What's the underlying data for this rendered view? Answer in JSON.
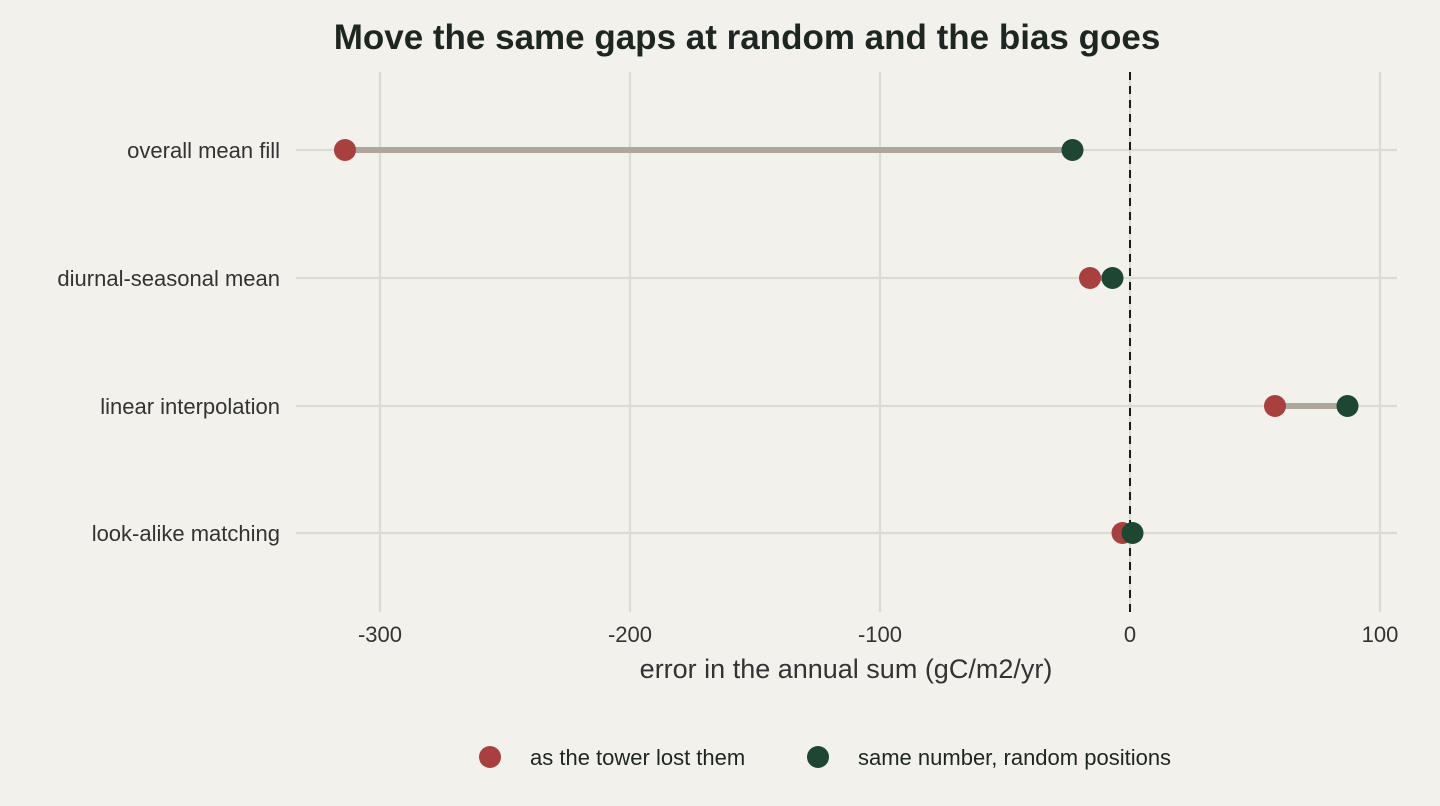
{
  "chart_data": {
    "type": "dot-range",
    "title": "Move the same gaps at random and the bias goes",
    "xlabel": "error in the annual sum (gC/m2/yr)",
    "ylabel": "",
    "xlim": [
      -340,
      107
    ],
    "x_ticks": [
      -300,
      -200,
      -100,
      0,
      100
    ],
    "x_tick_labels": [
      "-300",
      "-200",
      "-100",
      "0",
      "100"
    ],
    "reference_line": {
      "x": 0,
      "style": "dashed"
    },
    "grid": true,
    "legend_position": "bottom",
    "categories": [
      "overall mean fill",
      "diurnal-seasonal mean",
      "linear interpolation",
      "look-alike matching"
    ],
    "series": [
      {
        "name": "as the tower lost them",
        "color": "#a84040",
        "values": [
          -314,
          -16,
          58,
          -3
        ]
      },
      {
        "name": "same number, random positions",
        "color": "#1e4632",
        "values": [
          -23,
          -7,
          87,
          1
        ]
      }
    ],
    "connector_color": "#aea89c",
    "grid_color": "#dcdad2",
    "text_color": "#1e2621",
    "axis_text_color": "#333333",
    "background": "#f2f1eb"
  }
}
